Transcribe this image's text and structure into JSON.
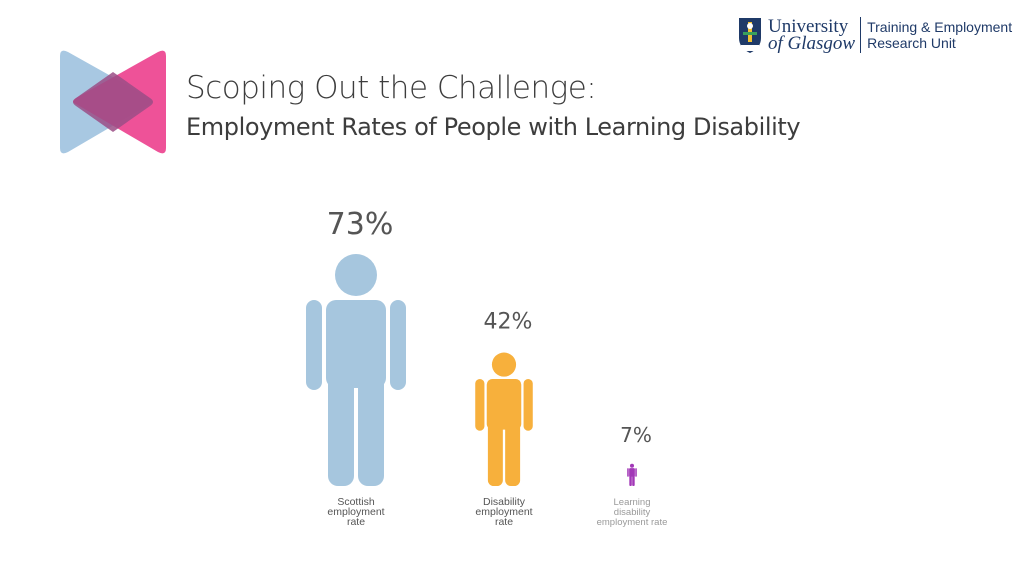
{
  "header": {
    "title": "Scoping Out the Challenge:",
    "subtitle": "Employment Rates of People with Learning Disability"
  },
  "logo": {
    "university_line1": "University",
    "university_line2": "of Glasgow",
    "unit_line1": "Training & Employment",
    "unit_line2": "Research Unit",
    "icon": "university-crest-icon"
  },
  "chart_data": {
    "type": "bar",
    "style": "pictogram-person",
    "categories": [
      "Scottish employment rate",
      "Disability employment rate",
      "Learning disability employment rate"
    ],
    "category_lines": [
      [
        "Scottish",
        "employment",
        "rate"
      ],
      [
        "Disability",
        "employment",
        "rate"
      ],
      [
        "Learning",
        "disability",
        "employment rate"
      ]
    ],
    "values": [
      73,
      42,
      7
    ],
    "value_labels": [
      "73%",
      "42%",
      "7%"
    ],
    "colors": [
      "#a6c6de",
      "#f7b03c",
      "#a238b7"
    ],
    "title": "",
    "xlabel": "",
    "ylabel": "",
    "ylim": [
      0,
      73
    ],
    "grid": false,
    "legend": "none"
  }
}
